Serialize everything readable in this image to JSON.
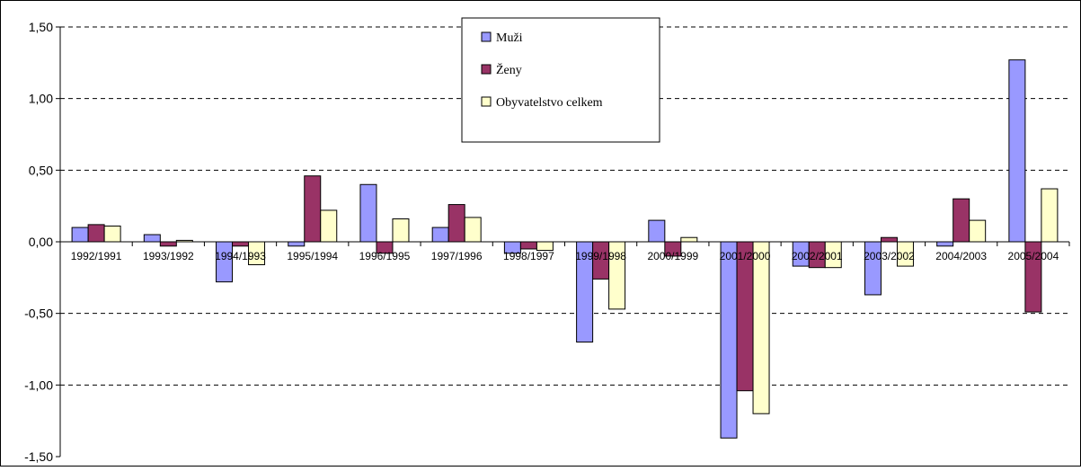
{
  "chart_data": {
    "type": "bar",
    "title": "",
    "xlabel": "",
    "ylabel": "",
    "ylim": [
      -1.5,
      1.5
    ],
    "yticks": [
      "1,50",
      "1,00",
      "0,50",
      "0,00",
      "-0,50",
      "-1,00",
      "-1,50"
    ],
    "ytick_values": [
      1.5,
      1.0,
      0.5,
      0.0,
      -0.5,
      -1.0,
      -1.5
    ],
    "grid": "horizontal dashed",
    "legend_position": "top-center",
    "categories": [
      "1992/1991",
      "1993/1992",
      "1994/1993",
      "1995/1994",
      "1996/1995",
      "1997/1996",
      "1998/1997",
      "1999/1998",
      "2000/1999",
      "2001/2000",
      "2002/2001",
      "2003/2002",
      "2004/2003",
      "2005/2004"
    ],
    "series": [
      {
        "name": "Muži",
        "color": "#9999ff",
        "values": [
          0.1,
          0.05,
          -0.28,
          -0.03,
          0.4,
          0.1,
          -0.08,
          -0.7,
          0.15,
          -1.37,
          -0.17,
          -0.37,
          -0.03,
          1.27
        ]
      },
      {
        "name": "Ženy",
        "color": "#993366",
        "values": [
          0.12,
          -0.03,
          -0.03,
          0.46,
          -0.08,
          0.26,
          -0.05,
          -0.26,
          -0.1,
          -1.04,
          -0.18,
          0.03,
          0.3,
          -0.49
        ]
      },
      {
        "name": "Obyvatelstvo celkem",
        "color": "#ffffcc",
        "values": [
          0.11,
          0.01,
          -0.16,
          0.22,
          0.16,
          0.17,
          -0.06,
          -0.47,
          0.03,
          -1.2,
          -0.18,
          -0.17,
          0.15,
          0.37
        ]
      }
    ]
  }
}
